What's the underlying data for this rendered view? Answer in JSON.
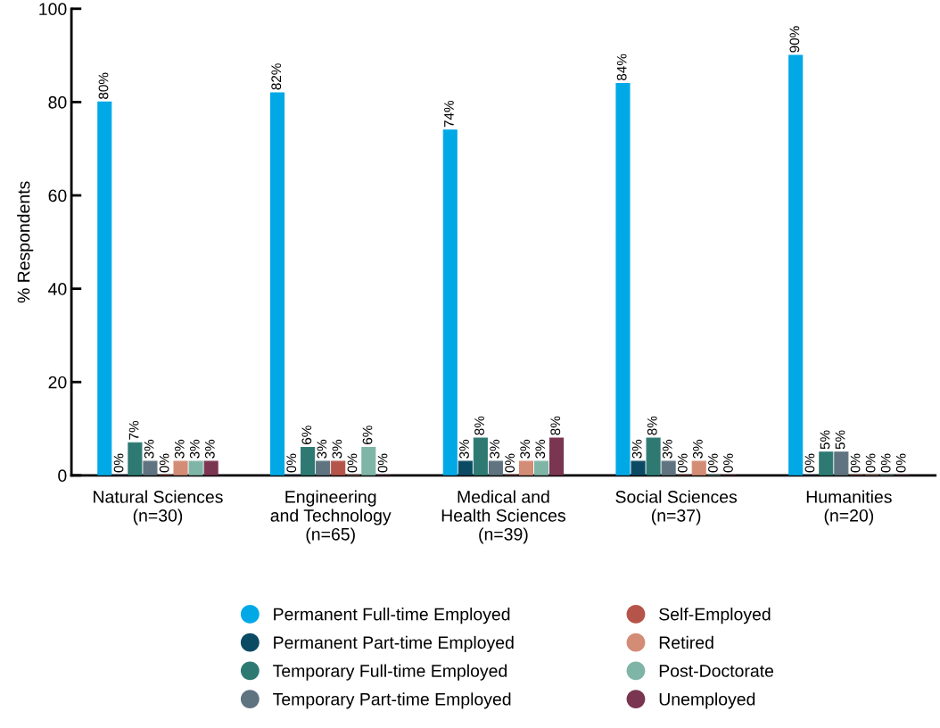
{
  "chart_data": {
    "type": "bar",
    "ylabel": "% Respondents",
    "categories": [
      "Natural Sciences\n(n=30)",
      "Engineering\nand Technology\n(n=65)",
      "Medical and\nHealth Sciences\n(n=39)",
      "Social Sciences\n(n=37)",
      "Humanities\n(n=20)"
    ],
    "series": [
      {
        "name": "Permanent Full-time Employed",
        "color": "#00a9e6",
        "values": [
          80,
          82,
          74,
          84,
          90
        ],
        "value_labels": [
          "80%",
          "82%",
          "74%",
          "84%",
          "90%"
        ]
      },
      {
        "name": "Permanent Part-time Employed",
        "color": "#0b4a63",
        "values": [
          0,
          0,
          3,
          3,
          0
        ],
        "value_labels": [
          "0%",
          "0%",
          "3%",
          "3%",
          "0%"
        ]
      },
      {
        "name": "Temporary Full-time Employed",
        "color": "#2e7a73",
        "values": [
          7,
          6,
          8,
          8,
          5
        ],
        "value_labels": [
          "7%",
          "6%",
          "8%",
          "8%",
          "5%"
        ]
      },
      {
        "name": "Temporary Part-time Employed",
        "color": "#5f7380",
        "values": [
          3,
          3,
          3,
          3,
          5
        ],
        "value_labels": [
          "3%",
          "3%",
          "3%",
          "3%",
          "5%"
        ]
      },
      {
        "name": "Self-Employed",
        "color": "#b5544a",
        "values": [
          0,
          3,
          0,
          0,
          0
        ],
        "value_labels": [
          "0%",
          "3%",
          "0%",
          "0%",
          "0%"
        ]
      },
      {
        "name": "Retired",
        "color": "#d38c76",
        "values": [
          3,
          0,
          3,
          3,
          0
        ],
        "value_labels": [
          "3%",
          "0%",
          "3%",
          "3%",
          "0%"
        ]
      },
      {
        "name": "Post-Doctorate",
        "color": "#7fb5a6",
        "values": [
          3,
          6,
          3,
          0,
          0
        ],
        "value_labels": [
          "3%",
          "6%",
          "3%",
          "0%",
          "0%"
        ]
      },
      {
        "name": "Unemployed",
        "color": "#7a3550",
        "values": [
          3,
          0,
          8,
          0,
          0
        ],
        "value_labels": [
          "3%",
          "0%",
          "8%",
          "0%",
          "0%"
        ]
      }
    ],
    "ylim": [
      0,
      100
    ],
    "yticks": [
      0,
      20,
      40,
      60,
      80,
      100
    ],
    "grid": false,
    "legend": "bottom"
  }
}
